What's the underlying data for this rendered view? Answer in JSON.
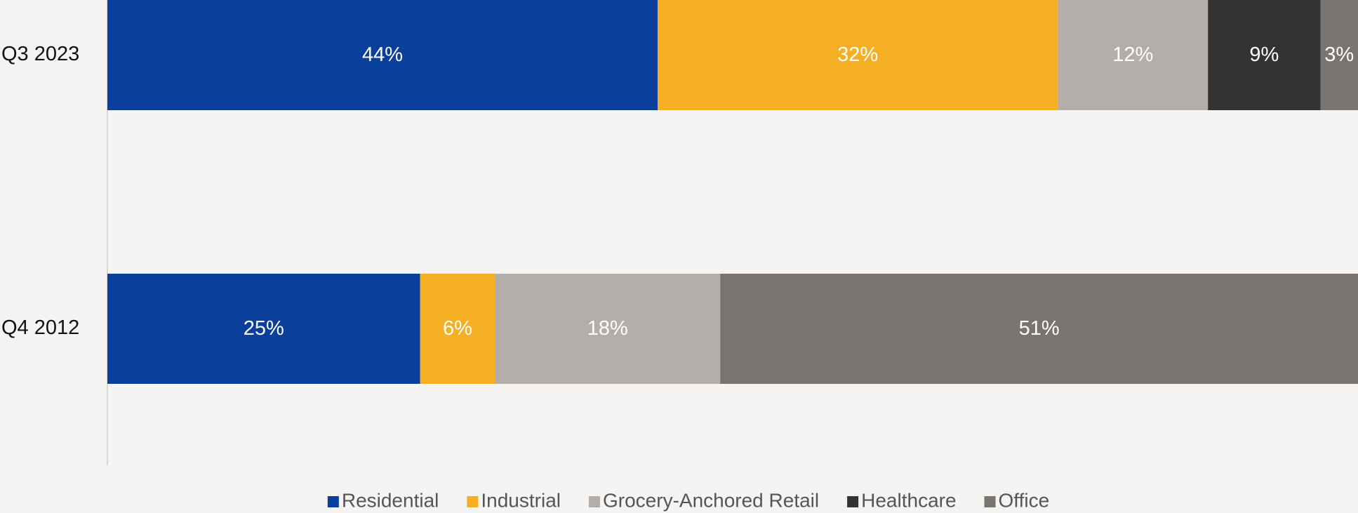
{
  "chart_data": {
    "type": "stacked_barh",
    "categories": [
      "Q3 2023",
      "Q4 2012"
    ],
    "series": [
      {
        "name": "Residential",
        "color": "#0a3f9c",
        "values": [
          44,
          25
        ],
        "value_labels": [
          "44%",
          "25%"
        ]
      },
      {
        "name": "Industrial",
        "color": "#f4af24",
        "values": [
          32,
          6
        ],
        "value_labels": [
          "32%",
          "6%"
        ]
      },
      {
        "name": "Grocery-Anchored Retail",
        "color": "#b3aea9",
        "values": [
          12,
          18
        ],
        "value_labels": [
          "12%",
          "18%"
        ]
      },
      {
        "name": "Healthcare",
        "color": "#333333",
        "values": [
          9,
          null
        ],
        "value_labels": [
          "9%",
          null
        ]
      },
      {
        "name": "Office",
        "color": "#79746f",
        "values": [
          3,
          51
        ],
        "value_labels": [
          "3%",
          "51%"
        ]
      }
    ],
    "xlim": [
      0,
      100
    ],
    "legend": "bottom"
  }
}
